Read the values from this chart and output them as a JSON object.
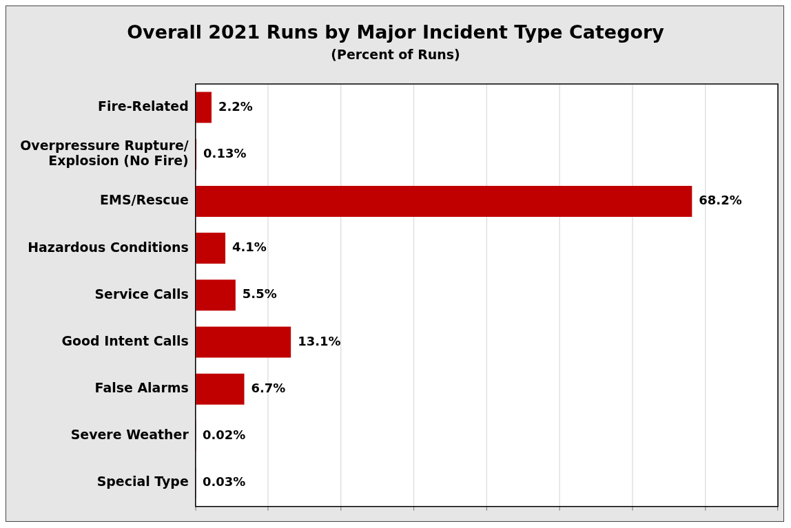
{
  "chart_data": {
    "type": "bar",
    "orientation": "horizontal",
    "title": "Overall 2021 Runs by Major Incident Type Category",
    "subtitle": "(Percent of Runs)",
    "categories": [
      "Fire-Related",
      "Overpressure Rupture/\nExplosion (No Fire)",
      "EMS/Rescue",
      "Hazardous Conditions",
      "Service Calls",
      "Good Intent Calls",
      "False Alarms",
      "Severe Weather",
      "Special Type"
    ],
    "values": [
      2.2,
      0.13,
      68.2,
      4.1,
      5.5,
      13.1,
      6.7,
      0.02,
      0.03
    ],
    "value_labels": [
      "2.2%",
      "0.13%",
      "68.2%",
      "4.1%",
      "5.5%",
      "13.1%",
      "6.7%",
      "0.02%",
      "0.03%"
    ],
    "color": "#c00000",
    "xlim": [
      0,
      80
    ],
    "xticks": [
      {
        "value": 0,
        "label": null
      },
      {
        "value": 10,
        "label": null
      },
      {
        "value": 20,
        "label": null
      },
      {
        "value": 30,
        "label": null
      },
      {
        "value": 40,
        "label": null
      },
      {
        "value": 50,
        "label": null
      },
      {
        "value": 60,
        "label": null
      },
      {
        "value": 70,
        "label": null
      },
      {
        "value": 80,
        "label": null
      }
    ],
    "tick_labels": "y",
    "grid": "x",
    "legend": false
  }
}
